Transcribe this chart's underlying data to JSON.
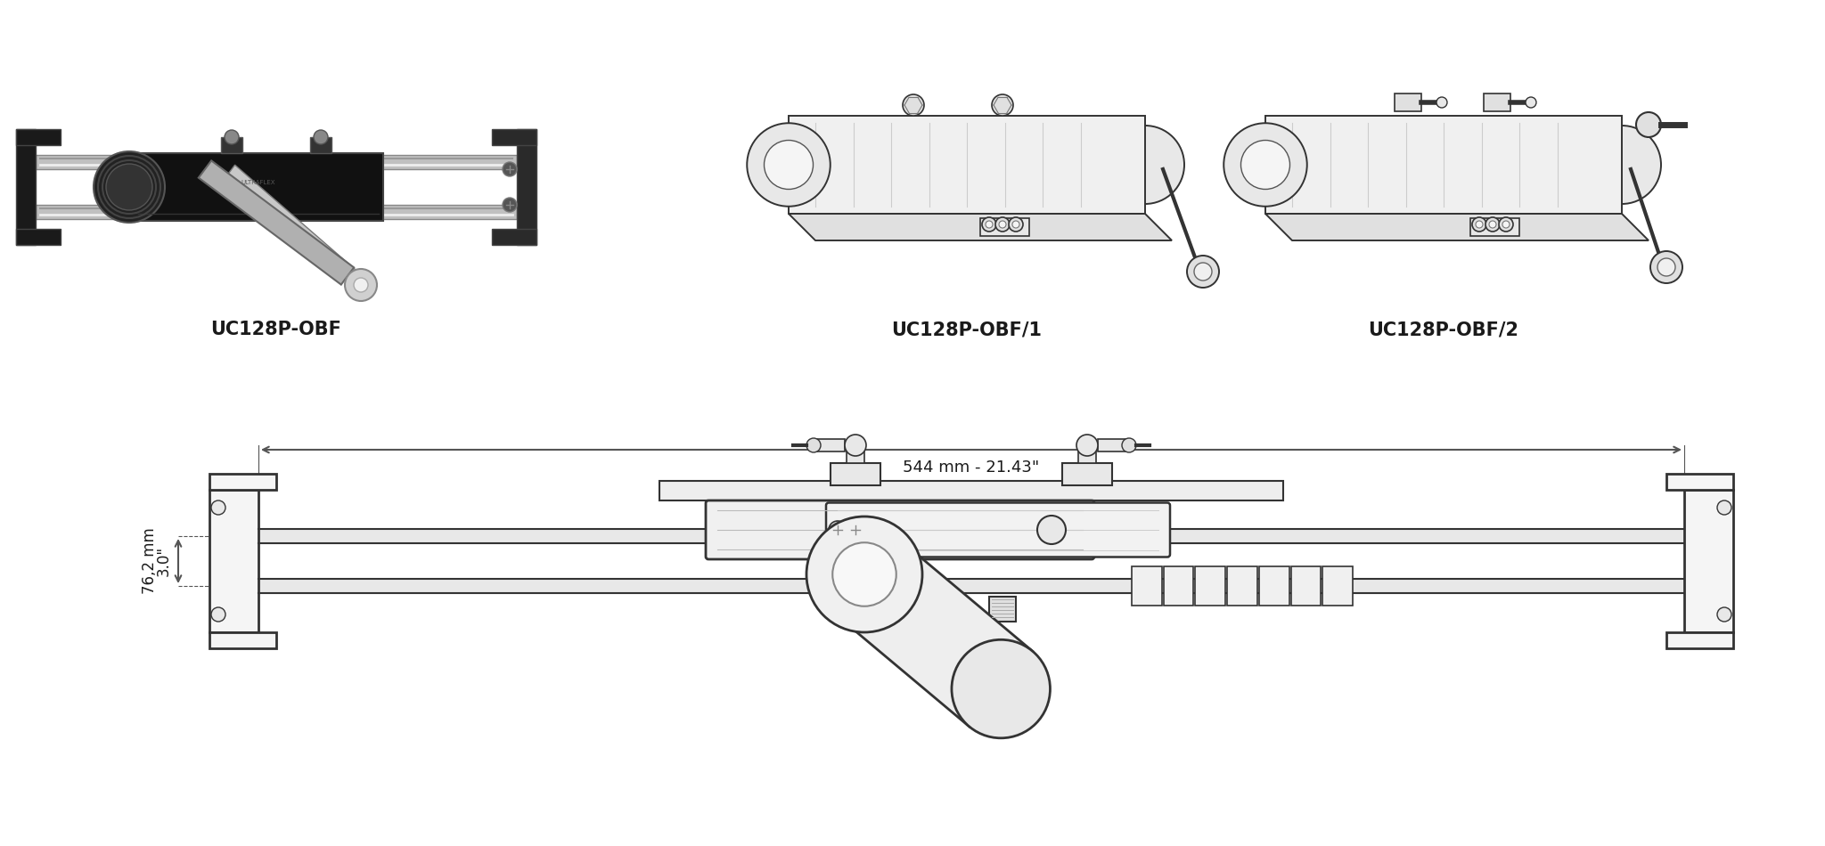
{
  "background_color": "#ffffff",
  "labels": {
    "model1": "UC128P-OBF",
    "model2": "UC128P-OBF/1",
    "model3": "UC128P-OBF/2",
    "dim_vertical_line1": "76,2 mm",
    "dim_vertical_line2": "3.0\"",
    "dim_horizontal": "544 mm - 21.43\""
  },
  "label_fontsize": 15,
  "dim_fontsize": 12,
  "text_color": "#1a1a1a",
  "line_color": "#333333",
  "dim_line_color": "#555555",
  "dashed_color": "#999999"
}
